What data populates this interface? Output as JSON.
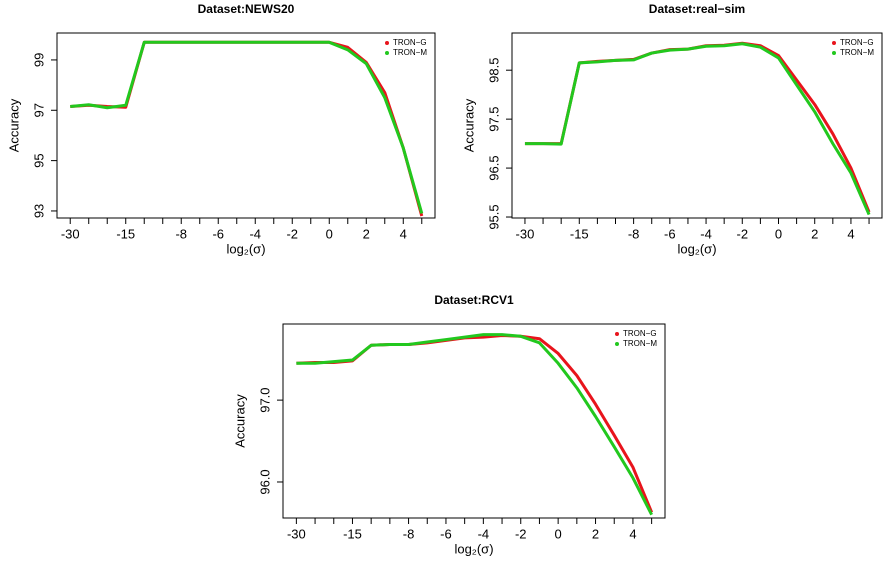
{
  "chart_data": [
    {
      "type": "line",
      "title": "Dataset:NEWS20",
      "xlabel": "log₂(σ)",
      "ylabel": "Accuracy",
      "categories": [
        -30,
        null,
        null,
        -15,
        null,
        null,
        -8,
        null,
        -6,
        null,
        -4,
        null,
        -2,
        null,
        0,
        null,
        2,
        null,
        4,
        null
      ],
      "series": [
        {
          "name": "TRON−G",
          "color": "#e8141c",
          "values": [
            97.15,
            97.2,
            97.15,
            97.12,
            99.7,
            99.7,
            99.7,
            99.7,
            99.7,
            99.7,
            99.7,
            99.7,
            99.7,
            99.7,
            99.7,
            99.5,
            98.9,
            97.7,
            95.5,
            92.8
          ]
        },
        {
          "name": "TRON−M",
          "color": "#22c81e",
          "values": [
            97.15,
            97.22,
            97.1,
            97.2,
            99.7,
            99.7,
            99.7,
            99.7,
            99.7,
            99.7,
            99.7,
            99.7,
            99.7,
            99.7,
            99.7,
            99.4,
            98.85,
            97.5,
            95.5,
            92.9
          ]
        }
      ],
      "ylim": [
        92.72,
        100.07
      ],
      "yticks": [
        93,
        95,
        97,
        99
      ],
      "legend": "top-right"
    },
    {
      "type": "line",
      "title": "Dataset:real−sim",
      "xlabel": "log₂(σ)",
      "ylabel": "Accuracy",
      "categories": [
        -30,
        null,
        null,
        -15,
        null,
        null,
        -8,
        null,
        -6,
        null,
        -4,
        null,
        -2,
        null,
        0,
        null,
        2,
        null,
        4,
        null
      ],
      "series": [
        {
          "name": "TRON−G",
          "color": "#e8141c",
          "values": [
            97.0,
            97.0,
            97.0,
            98.65,
            98.68,
            98.7,
            98.72,
            98.85,
            98.92,
            98.93,
            99.0,
            99.01,
            99.05,
            99.0,
            98.8,
            98.3,
            97.8,
            97.2,
            96.5,
            95.6
          ]
        },
        {
          "name": "TRON−M",
          "color": "#22c81e",
          "values": [
            97.0,
            97.0,
            96.99,
            98.65,
            98.67,
            98.7,
            98.71,
            98.85,
            98.91,
            98.93,
            98.99,
            99.0,
            99.04,
            98.97,
            98.75,
            98.2,
            97.65,
            97.0,
            96.4,
            95.55
          ]
        }
      ],
      "ylim": [
        95.48,
        99.26
      ],
      "yticks": [
        95.5,
        96.5,
        97.5,
        98.5
      ],
      "legend": "top-right"
    },
    {
      "type": "line",
      "title": "Dataset:RCV1",
      "xlabel": "log₂(σ)",
      "ylabel": "Accuracy",
      "categories": [
        -30,
        null,
        null,
        -15,
        null,
        null,
        -8,
        null,
        -6,
        null,
        -4,
        null,
        -2,
        null,
        0,
        null,
        2,
        null,
        4,
        null
      ],
      "series": [
        {
          "name": "TRON−G",
          "color": "#e8141c",
          "values": [
            97.45,
            97.46,
            97.46,
            97.48,
            97.67,
            97.68,
            97.68,
            97.7,
            97.73,
            97.76,
            97.77,
            97.79,
            97.78,
            97.75,
            97.57,
            97.3,
            96.95,
            96.57,
            96.18,
            95.63
          ]
        },
        {
          "name": "TRON−M",
          "color": "#22c81e",
          "values": [
            97.45,
            97.45,
            97.47,
            97.49,
            97.67,
            97.68,
            97.68,
            97.71,
            97.74,
            97.77,
            97.8,
            97.8,
            97.78,
            97.7,
            97.45,
            97.15,
            96.8,
            96.43,
            96.05,
            95.6
          ]
        }
      ],
      "ylim": [
        95.56,
        97.93
      ],
      "yticks": [
        {
          "value": 96,
          "label": "96.0"
        },
        {
          "value": 97,
          "label": "97.0"
        }
      ],
      "legend": "top-right"
    }
  ]
}
